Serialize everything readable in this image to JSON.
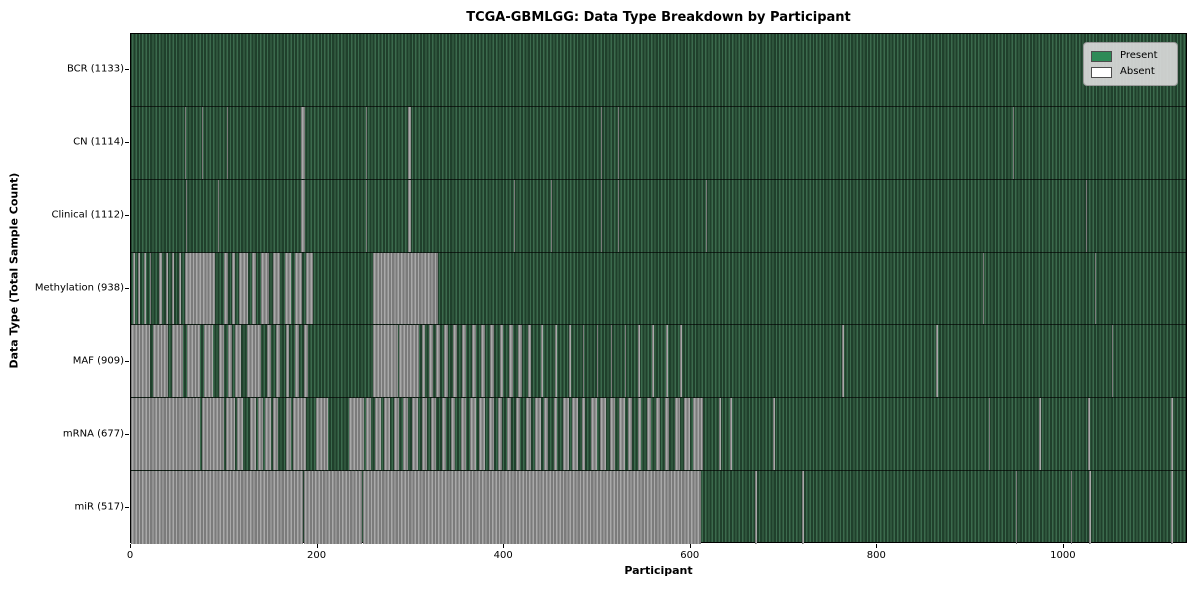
{
  "chart_data": {
    "type": "heatmap",
    "title": "TCGA-GBMLGG: Data Type Breakdown by Participant",
    "xlabel": "Participant",
    "ylabel": "Data Type (Total Sample Count)",
    "x_ticks": [
      0,
      200,
      400,
      600,
      800,
      1000
    ],
    "x_max": 1133,
    "grid": false,
    "legend_position": "upper right",
    "legend": [
      {
        "label": "Present",
        "color": "#2e8b57"
      },
      {
        "label": "Absent",
        "color": "#ffffff"
      }
    ],
    "colors": {
      "present": "#2e8b57",
      "absent": "#ffffff",
      "present_stripe_light": "#3b6a4d",
      "present_stripe_dark": "#20402c",
      "absent_stripe_light": "#a9a9a9",
      "absent_stripe_dark": "#7b7b7b"
    },
    "rows": [
      {
        "name": "BCR",
        "count": 1133,
        "label": "BCR (1133)",
        "absent_segments": []
      },
      {
        "name": "CN",
        "count": 1114,
        "label": "CN (1114)",
        "absent_segments": [
          [
            58,
            59
          ],
          [
            76,
            77
          ],
          [
            103,
            104
          ],
          [
            123,
            124
          ],
          [
            183,
            187
          ],
          [
            252,
            253
          ],
          [
            297,
            301
          ],
          [
            505,
            506
          ],
          [
            523,
            524
          ],
          [
            947,
            948
          ]
        ]
      },
      {
        "name": "Clinical",
        "count": 1112,
        "label": "Clinical (1112)",
        "absent_segments": [
          [
            59,
            60
          ],
          [
            93,
            94
          ],
          [
            183,
            187
          ],
          [
            252,
            253
          ],
          [
            297,
            301
          ],
          [
            411,
            412
          ],
          [
            451,
            452
          ],
          [
            505,
            506
          ],
          [
            523,
            524
          ],
          [
            618,
            619
          ],
          [
            1026,
            1027
          ]
        ]
      },
      {
        "name": "Methylation",
        "count": 938,
        "label": "Methylation (938)",
        "absent_segments": [
          [
            2,
            4
          ],
          [
            8,
            10
          ],
          [
            14,
            16
          ],
          [
            20,
            22
          ],
          [
            30,
            33
          ],
          [
            38,
            40
          ],
          [
            44,
            46
          ],
          [
            52,
            54
          ],
          [
            58,
            90
          ],
          [
            100,
            104
          ],
          [
            108,
            112
          ],
          [
            116,
            126
          ],
          [
            130,
            134
          ],
          [
            140,
            148
          ],
          [
            152,
            160
          ],
          [
            165,
            172
          ],
          [
            176,
            184
          ],
          [
            188,
            196
          ],
          [
            260,
            330
          ],
          [
            915,
            916
          ],
          [
            1035,
            1036
          ]
        ]
      },
      {
        "name": "MAF",
        "count": 909,
        "label": "MAF (909)",
        "absent_segments": [
          [
            0,
            20
          ],
          [
            24,
            40
          ],
          [
            44,
            56
          ],
          [
            60,
            74
          ],
          [
            78,
            88
          ],
          [
            95,
            100
          ],
          [
            104,
            108
          ],
          [
            112,
            118
          ],
          [
            125,
            140
          ],
          [
            146,
            150
          ],
          [
            156,
            160
          ],
          [
            166,
            170
          ],
          [
            176,
            180
          ],
          [
            186,
            190
          ],
          [
            260,
            287
          ],
          [
            288,
            309
          ],
          [
            312,
            316
          ],
          [
            320,
            324
          ],
          [
            328,
            332
          ],
          [
            336,
            340
          ],
          [
            346,
            350
          ],
          [
            356,
            360
          ],
          [
            366,
            370
          ],
          [
            376,
            380
          ],
          [
            386,
            390
          ],
          [
            396,
            400
          ],
          [
            406,
            410
          ],
          [
            416,
            420
          ],
          [
            426,
            430
          ],
          [
            440,
            442
          ],
          [
            455,
            457
          ],
          [
            470,
            472
          ],
          [
            485,
            487
          ],
          [
            500,
            502
          ],
          [
            515,
            517
          ],
          [
            530,
            532
          ],
          [
            545,
            547
          ],
          [
            560,
            562
          ],
          [
            575,
            577
          ],
          [
            590,
            592
          ],
          [
            764,
            766
          ],
          [
            865,
            867
          ],
          [
            1053,
            1055
          ]
        ]
      },
      {
        "name": "mRNA",
        "count": 677,
        "label": "mRNA (677)",
        "absent_segments": [
          [
            0,
            74
          ],
          [
            76,
            100
          ],
          [
            102,
            112
          ],
          [
            114,
            120
          ],
          [
            128,
            134
          ],
          [
            136,
            142
          ],
          [
            144,
            150
          ],
          [
            152,
            158
          ],
          [
            166,
            172
          ],
          [
            174,
            188
          ],
          [
            199,
            212
          ],
          [
            234,
            250
          ],
          [
            252,
            258
          ],
          [
            262,
            268
          ],
          [
            272,
            278
          ],
          [
            282,
            288
          ],
          [
            292,
            298
          ],
          [
            302,
            308
          ],
          [
            312,
            318
          ],
          [
            322,
            328
          ],
          [
            334,
            338
          ],
          [
            344,
            348
          ],
          [
            354,
            360
          ],
          [
            364,
            370
          ],
          [
            374,
            380
          ],
          [
            384,
            390
          ],
          [
            394,
            398
          ],
          [
            404,
            408
          ],
          [
            414,
            418
          ],
          [
            424,
            430
          ],
          [
            434,
            440
          ],
          [
            444,
            448
          ],
          [
            454,
            458
          ],
          [
            464,
            470
          ],
          [
            474,
            480
          ],
          [
            484,
            488
          ],
          [
            494,
            500
          ],
          [
            504,
            510
          ],
          [
            514,
            520
          ],
          [
            524,
            530
          ],
          [
            534,
            538
          ],
          [
            544,
            548
          ],
          [
            554,
            558
          ],
          [
            564,
            568
          ],
          [
            574,
            578
          ],
          [
            584,
            590
          ],
          [
            594,
            600
          ],
          [
            604,
            614
          ],
          [
            632,
            634
          ],
          [
            643,
            645
          ],
          [
            690,
            692
          ],
          [
            921,
            923
          ],
          [
            975,
            977
          ],
          [
            1028,
            1030
          ],
          [
            1117,
            1119
          ]
        ]
      },
      {
        "name": "miR",
        "count": 517,
        "label": "miR (517)",
        "absent_segments": [
          [
            0,
            185
          ],
          [
            186,
            248
          ],
          [
            249,
            612
          ],
          [
            670,
            672
          ],
          [
            721,
            723
          ],
          [
            950,
            952
          ],
          [
            1009,
            1011
          ],
          [
            1029,
            1031
          ],
          [
            1117,
            1119
          ]
        ]
      }
    ]
  }
}
